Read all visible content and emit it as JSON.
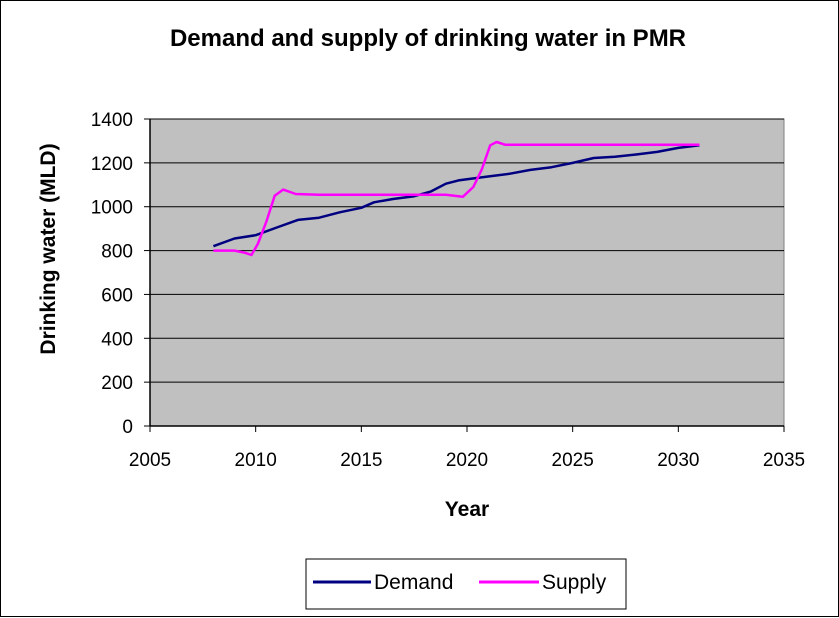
{
  "chart_data": {
    "type": "line",
    "title": "Demand and supply of drinking water in PMR",
    "xlabel": "Year",
    "ylabel": "Drinking water (MLD)",
    "xlim": [
      2005,
      2035
    ],
    "ylim": [
      0,
      1400
    ],
    "xticks": [
      2005,
      2010,
      2015,
      2020,
      2025,
      2030,
      2035
    ],
    "yticks": [
      0,
      200,
      400,
      600,
      800,
      1000,
      1200,
      1400
    ],
    "grid": "horizontal",
    "plot_background": "#c0c0c0",
    "legend_position": "bottom",
    "series": [
      {
        "name": "Demand",
        "color": "#000080",
        "x": [
          2008,
          2009,
          2010,
          2011,
          2012,
          2013,
          2014,
          2015,
          2015.6,
          2016.5,
          2017.5,
          2018.3,
          2019,
          2019.6,
          2020,
          2021,
          2022,
          2023,
          2024,
          2025,
          2026,
          2027,
          2028,
          2029,
          2030,
          2031
        ],
        "y": [
          820,
          855,
          870,
          905,
          940,
          950,
          975,
          995,
          1020,
          1035,
          1048,
          1070,
          1105,
          1120,
          1125,
          1138,
          1150,
          1168,
          1180,
          1200,
          1222,
          1228,
          1238,
          1250,
          1268,
          1280
        ]
      },
      {
        "name": "Supply",
        "color": "#ff00ff",
        "x": [
          2008,
          2009,
          2009.5,
          2009.8,
          2010.1,
          2010.5,
          2010.9,
          2011.3,
          2011.9,
          2013,
          2015,
          2019,
          2019.8,
          2020.3,
          2020.7,
          2021.1,
          2021.4,
          2021.8,
          2025,
          2031
        ],
        "y": [
          800,
          800,
          790,
          780,
          830,
          930,
          1050,
          1078,
          1058,
          1055,
          1055,
          1055,
          1045,
          1090,
          1170,
          1280,
          1295,
          1283,
          1283,
          1283
        ]
      }
    ]
  }
}
